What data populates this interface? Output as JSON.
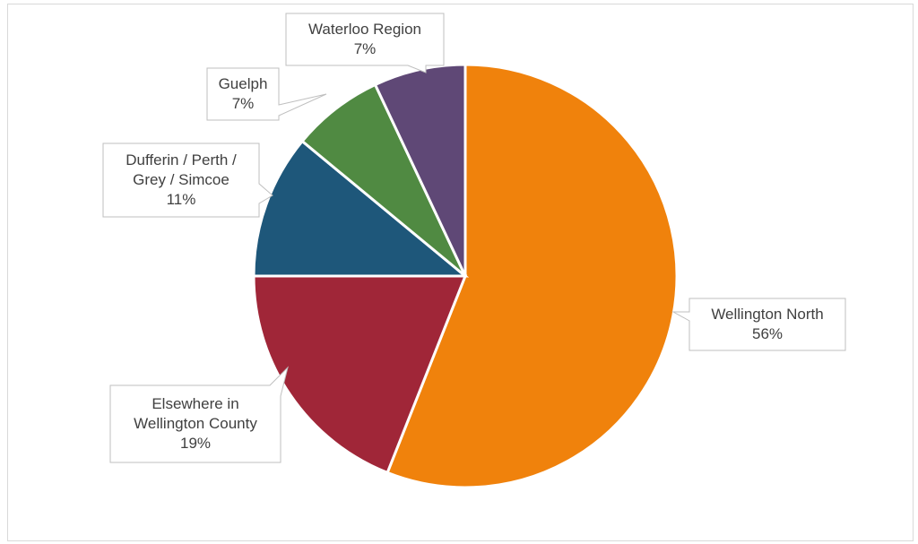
{
  "chart_data": {
    "type": "pie",
    "title": "",
    "slices": [
      {
        "label": "Wellington North",
        "value": 56,
        "value_label": "56%",
        "color": "#f0820c"
      },
      {
        "label": "Elsewhere in Wellington County",
        "value": 19,
        "value_label": "19%",
        "color": "#a02638"
      },
      {
        "label": "Dufferin / Perth / Grey / Simcoe",
        "value": 11,
        "value_label": "11%",
        "color": "#1e577a"
      },
      {
        "label": "Guelph",
        "value": 7,
        "value_label": "7%",
        "color": "#508a42"
      },
      {
        "label": "Waterloo Region",
        "value": 7,
        "value_label": "7%",
        "color": "#5f4876"
      }
    ],
    "start_angle_deg": 0,
    "direction": "clockwise",
    "legend": "none",
    "data_labels": "callouts"
  }
}
